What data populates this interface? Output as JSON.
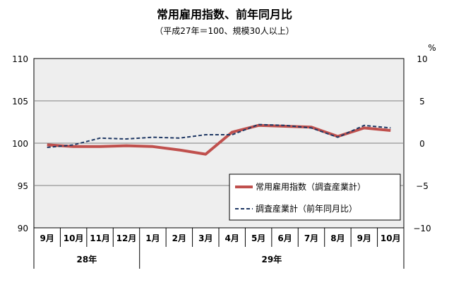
{
  "chart_data": {
    "type": "line",
    "title": "常用雇用指数、前年同月比",
    "subtitle": "（平成27年＝100、規模30人以上）",
    "right_axis_unit": "%",
    "categories": [
      "9月",
      "10月",
      "11月",
      "12月",
      "1月",
      "2月",
      "3月",
      "4月",
      "5月",
      "6月",
      "7月",
      "8月",
      "9月",
      "10月"
    ],
    "year_groups": [
      {
        "label": "28年",
        "start": 0,
        "end": 3
      },
      {
        "label": "29年",
        "start": 4,
        "end": 13
      }
    ],
    "y_left": {
      "min": 90,
      "max": 110,
      "ticks": [
        90,
        95,
        100,
        105,
        110
      ]
    },
    "y_right": {
      "min": -10,
      "max": 10,
      "ticks": [
        -10,
        -5,
        0,
        5,
        10
      ]
    },
    "grid": true,
    "legend_position": "bottom-right",
    "series": [
      {
        "name": "常用雇用指数（調査産業計）",
        "axis": "left",
        "style": "solid",
        "color": "#c0504d",
        "values": [
          99.8,
          99.6,
          99.6,
          99.7,
          99.6,
          99.2,
          98.7,
          101.3,
          102.1,
          102.0,
          101.9,
          100.8,
          101.8,
          101.5
        ]
      },
      {
        "name": "調査産業計（前年同月比）",
        "axis": "right",
        "style": "dashed",
        "color": "#1f3864",
        "values": [
          -0.5,
          -0.2,
          0.6,
          0.5,
          0.7,
          0.6,
          1.0,
          1.0,
          2.2,
          2.1,
          1.8,
          0.7,
          2.1,
          1.8
        ]
      }
    ]
  }
}
